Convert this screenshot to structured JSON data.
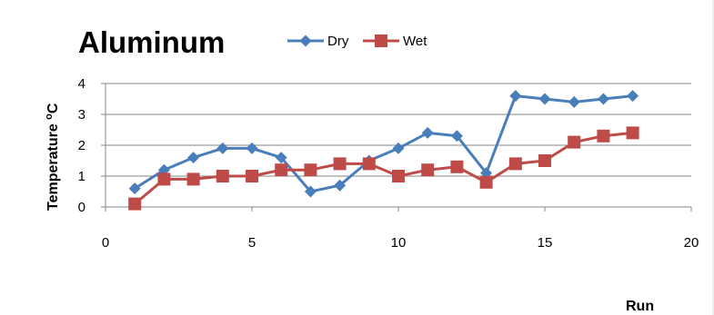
{
  "chart_data": {
    "type": "line",
    "title": "Aluminum",
    "xlabel": "Run",
    "ylabel": "Temperature ",
    "ylabel_sup": "o",
    "ylabel_unit": "C",
    "xlim": [
      0,
      20
    ],
    "ylim": [
      0,
      4
    ],
    "xticks": [
      0,
      5,
      10,
      15,
      20
    ],
    "yticks": [
      0,
      1,
      2,
      3,
      4
    ],
    "grid": "horizontal",
    "legend_position": "top",
    "x": [
      1,
      2,
      3,
      4,
      5,
      6,
      7,
      8,
      9,
      10,
      11,
      12,
      13,
      14,
      15,
      16,
      17,
      18
    ],
    "series": [
      {
        "name": "Dry",
        "color": "#4a7ebb",
        "marker": "diamond",
        "values": [
          0.6,
          1.2,
          1.6,
          1.9,
          1.9,
          1.6,
          0.5,
          0.7,
          1.5,
          1.9,
          2.4,
          2.3,
          1.1,
          3.6,
          3.5,
          3.4,
          3.5,
          3.6
        ]
      },
      {
        "name": "Wet",
        "color": "#be4b48",
        "marker": "square",
        "values": [
          0.1,
          0.9,
          0.9,
          1.0,
          1.0,
          1.2,
          1.2,
          1.4,
          1.4,
          1.0,
          1.2,
          1.3,
          0.8,
          1.4,
          1.5,
          2.1,
          2.3,
          2.4
        ]
      }
    ]
  }
}
